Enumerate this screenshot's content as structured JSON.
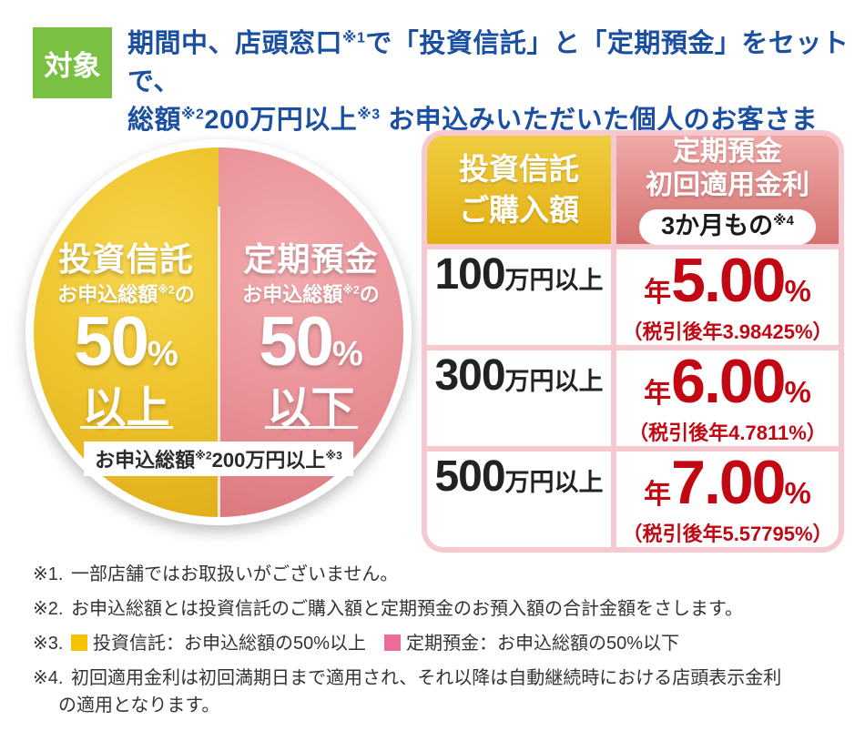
{
  "header": {
    "badge": "対象",
    "line1": [
      {
        "t": "期間中、店頭窓口"
      },
      {
        "t": "※1",
        "sup": true
      },
      {
        "t": "で「投資信託」と「定期預金」をセットで、"
      }
    ],
    "line2": [
      {
        "t": "総額"
      },
      {
        "t": "※2",
        "sup": true
      },
      {
        "t": "200万円以上"
      },
      {
        "t": "※3",
        "sup": true
      },
      {
        "t": " お申込みいただいた個人のお客さま"
      }
    ]
  },
  "circle": {
    "left": {
      "title": "投資信託",
      "subtitle": [
        {
          "t": "お申込総額"
        },
        {
          "t": "※2",
          "sup": true
        },
        {
          "t": "の"
        }
      ],
      "value": "50",
      "unit": "%",
      "condition": "以上"
    },
    "right": {
      "title": "定期預金",
      "subtitle": [
        {
          "t": "お申込総額"
        },
        {
          "t": "※2",
          "sup": true
        },
        {
          "t": "の"
        }
      ],
      "value": "50",
      "unit": "%",
      "condition": "以下"
    },
    "banner": [
      {
        "t": "お申込総額"
      },
      {
        "t": "※2",
        "sup": true
      },
      {
        "t": "200万円以上"
      },
      {
        "t": "※3",
        "sup": true
      }
    ]
  },
  "table": {
    "col1_header_line1": "投資信託",
    "col1_header_line2": "ご購入額",
    "col2_header_line1": "定期預金",
    "col2_header_line2": "初回適用金利",
    "pill_text": "3か月もの",
    "pill_sup": "※4",
    "rows": [
      {
        "amount": "100",
        "amount_unit": "万円以上",
        "rate_prefix": "年",
        "rate": "5.00",
        "rate_unit": "%",
        "after_tax": "（税引後年3.98425%）"
      },
      {
        "amount": "300",
        "amount_unit": "万円以上",
        "rate_prefix": "年",
        "rate": "6.00",
        "rate_unit": "%",
        "after_tax": "（税引後年4.7811%）"
      },
      {
        "amount": "500",
        "amount_unit": "万円以上",
        "rate_prefix": "年",
        "rate": "7.00",
        "rate_unit": "%",
        "after_tax": "（税引後年5.57795%）"
      }
    ]
  },
  "footnotes": {
    "f1_label": "※1.",
    "f1": "一部店舗ではお取扱いがございません。",
    "f2_label": "※2.",
    "f2": "お申込総額とは投資信託のご購入額と定期預金のお預入額の合計金額をさします。",
    "f3_label": "※3.",
    "f3_yellow": "投資信託：お申込総額の50%以上",
    "f3_pink": "定期預金：お申込総額の50%以下",
    "f4_label": "※4.",
    "f4_line1": "初回適用金利は初回満期日まで適用され、それ以降は自動継続時における店頭表示金利",
    "f4_line2": "の適用となります。"
  },
  "colors": {
    "badge_green": "#7AC143",
    "headline_blue": "#1B4FA1",
    "circle_yellow": "#EFC52F",
    "circle_pink": "#EA959B",
    "table_border_pink": "#F5C9CF",
    "rate_red": "#C20813",
    "legend_yellow": "#F5C400",
    "legend_pink": "#EC6D9A"
  }
}
